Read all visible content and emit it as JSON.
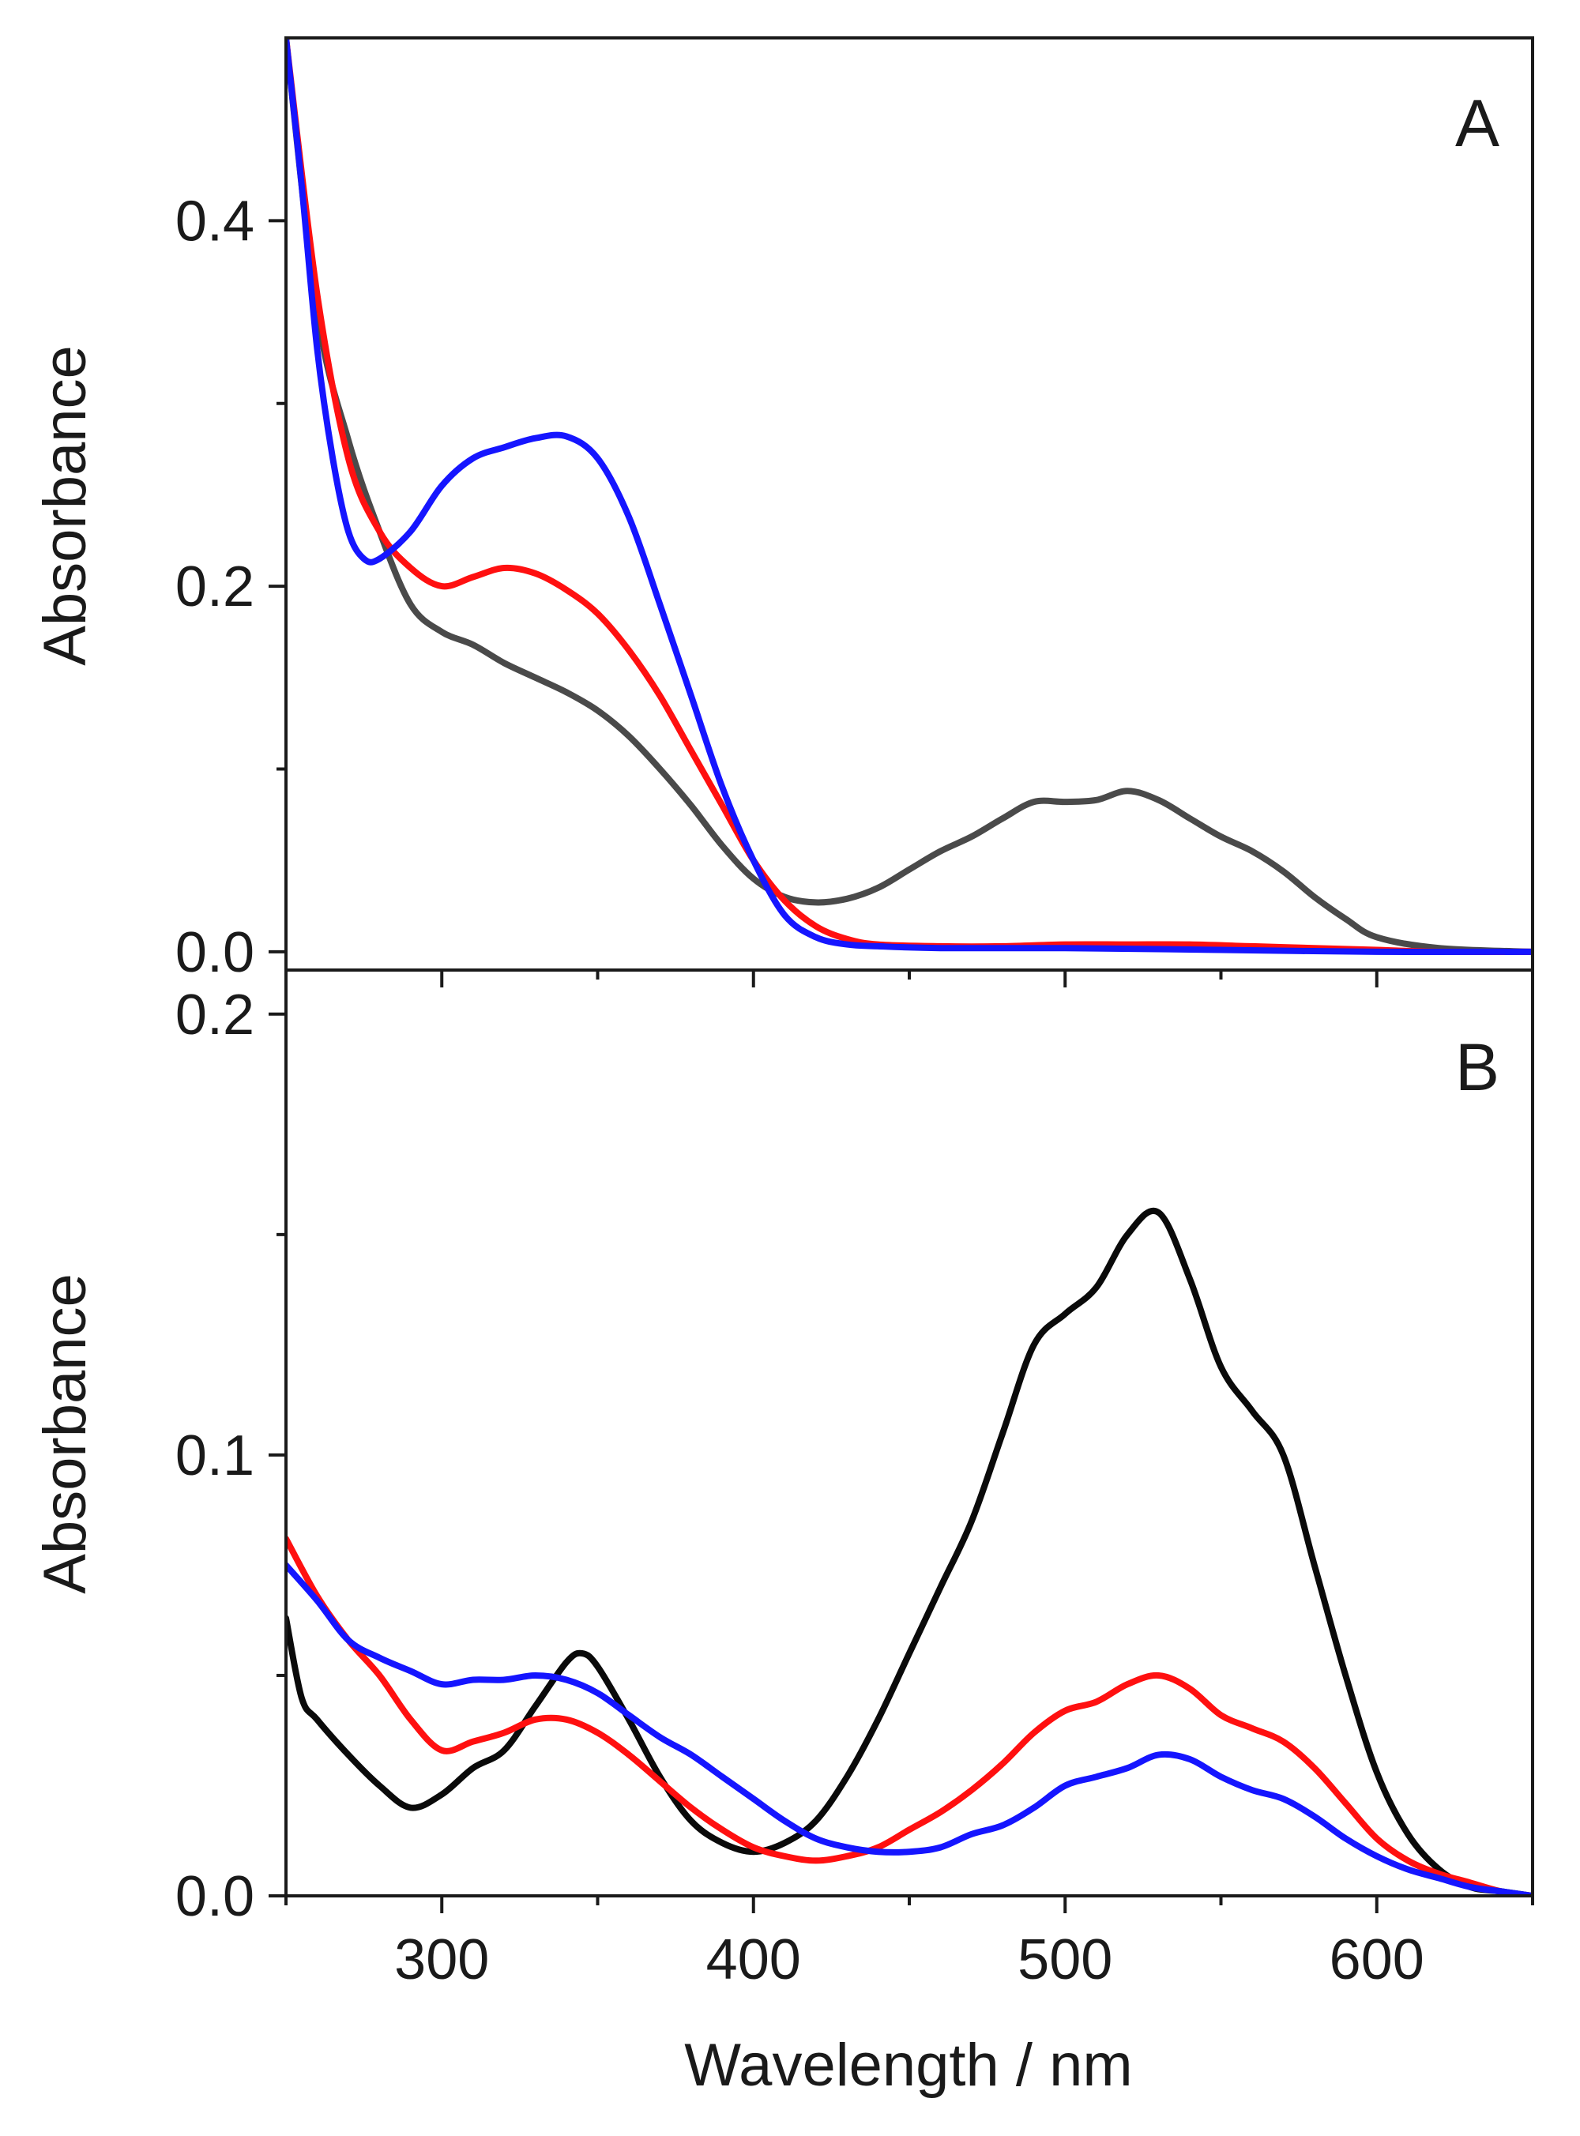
{
  "chart_data": [
    {
      "type": "line",
      "panel": "A",
      "panel_label": "A",
      "ylabel": "Absorbance",
      "xlabel": "",
      "xlim": [
        250,
        650
      ],
      "ylim": [
        -0.01,
        0.5
      ],
      "yticks": [
        0.0,
        0.2,
        0.4
      ],
      "ytick_labels": [
        "0.0",
        "0.2",
        "0.4"
      ],
      "yminor": [
        0.1,
        0.3
      ],
      "series": [
        {
          "name": "dark-gray",
          "color": "#4a4a4a",
          "x": [
            250,
            260,
            270,
            280,
            290,
            300,
            310,
            320,
            330,
            340,
            350,
            360,
            370,
            380,
            390,
            400,
            410,
            420,
            430,
            440,
            450,
            460,
            470,
            480,
            490,
            500,
            510,
            520,
            530,
            540,
            550,
            560,
            570,
            580,
            590,
            600,
            620,
            650
          ],
          "y": [
            0.5,
            0.35,
            0.28,
            0.23,
            0.19,
            0.175,
            0.168,
            0.158,
            0.15,
            0.142,
            0.132,
            0.118,
            0.1,
            0.08,
            0.058,
            0.04,
            0.03,
            0.027,
            0.029,
            0.035,
            0.045,
            0.055,
            0.063,
            0.073,
            0.082,
            0.082,
            0.083,
            0.088,
            0.083,
            0.073,
            0.063,
            0.055,
            0.044,
            0.03,
            0.018,
            0.008,
            0.002,
            0.0
          ]
        },
        {
          "name": "red",
          "color": "#ff1010",
          "x": [
            250,
            260,
            270,
            280,
            290,
            300,
            310,
            320,
            330,
            340,
            350,
            360,
            370,
            380,
            390,
            400,
            410,
            420,
            430,
            440,
            460,
            480,
            500,
            520,
            540,
            560,
            580,
            600,
            620,
            650
          ],
          "y": [
            0.5,
            0.36,
            0.27,
            0.23,
            0.21,
            0.2,
            0.205,
            0.21,
            0.207,
            0.198,
            0.185,
            0.165,
            0.14,
            0.11,
            0.08,
            0.05,
            0.028,
            0.014,
            0.007,
            0.004,
            0.003,
            0.003,
            0.004,
            0.004,
            0.004,
            0.003,
            0.002,
            0.001,
            0.0,
            0.0
          ]
        },
        {
          "name": "blue",
          "color": "#1515ff",
          "x": [
            250,
            255,
            260,
            265,
            270,
            275,
            280,
            290,
            300,
            310,
            320,
            330,
            340,
            350,
            360,
            370,
            380,
            390,
            400,
            410,
            420,
            430,
            440,
            460,
            500,
            550,
            600,
            650
          ],
          "y": [
            0.5,
            0.42,
            0.33,
            0.27,
            0.23,
            0.215,
            0.215,
            0.23,
            0.255,
            0.27,
            0.276,
            0.281,
            0.282,
            0.27,
            0.238,
            0.19,
            0.14,
            0.09,
            0.05,
            0.02,
            0.008,
            0.004,
            0.003,
            0.002,
            0.002,
            0.001,
            0.0,
            0.0
          ]
        }
      ]
    },
    {
      "type": "line",
      "panel": "B",
      "panel_label": "B",
      "ylabel": "Absorbance",
      "xlabel": "Wavelength / nm",
      "xlim": [
        250,
        650
      ],
      "ylim": [
        0,
        0.21
      ],
      "xticks": [
        300,
        400,
        500,
        600
      ],
      "xtick_labels": [
        "300",
        "400",
        "500",
        "600"
      ],
      "xminor": [
        250,
        350,
        450,
        550,
        650
      ],
      "yticks": [
        0.0,
        0.1,
        0.2
      ],
      "ytick_labels": [
        "0.0",
        "0.1",
        "0.2"
      ],
      "yminor": [
        0.05,
        0.15
      ],
      "series": [
        {
          "name": "black",
          "color": "#0a0a0a",
          "x": [
            250,
            255,
            260,
            270,
            280,
            290,
            300,
            310,
            320,
            330,
            340,
            345,
            350,
            360,
            370,
            380,
            390,
            400,
            410,
            420,
            430,
            440,
            450,
            460,
            470,
            480,
            490,
            500,
            510,
            520,
            530,
            540,
            550,
            560,
            570,
            580,
            590,
            600,
            610,
            620,
            630,
            640,
            650
          ],
          "y": [
            0.063,
            0.045,
            0.04,
            0.032,
            0.025,
            0.02,
            0.023,
            0.029,
            0.033,
            0.043,
            0.053,
            0.055,
            0.052,
            0.04,
            0.027,
            0.017,
            0.012,
            0.01,
            0.012,
            0.017,
            0.027,
            0.04,
            0.055,
            0.07,
            0.085,
            0.105,
            0.125,
            0.132,
            0.138,
            0.15,
            0.155,
            0.14,
            0.12,
            0.11,
            0.1,
            0.075,
            0.05,
            0.028,
            0.014,
            0.006,
            0.002,
            0.001,
            0.0
          ]
        },
        {
          "name": "red",
          "color": "#ff1010",
          "x": [
            250,
            260,
            270,
            280,
            290,
            300,
            310,
            320,
            330,
            340,
            350,
            360,
            370,
            380,
            390,
            400,
            410,
            420,
            430,
            440,
            450,
            460,
            470,
            480,
            490,
            500,
            510,
            520,
            530,
            540,
            550,
            560,
            570,
            580,
            590,
            600,
            610,
            620,
            630,
            640,
            650
          ],
          "y": [
            0.081,
            0.068,
            0.058,
            0.05,
            0.04,
            0.033,
            0.035,
            0.037,
            0.04,
            0.04,
            0.037,
            0.032,
            0.026,
            0.02,
            0.015,
            0.011,
            0.009,
            0.008,
            0.009,
            0.011,
            0.015,
            0.019,
            0.024,
            0.03,
            0.037,
            0.042,
            0.044,
            0.048,
            0.05,
            0.047,
            0.041,
            0.038,
            0.035,
            0.029,
            0.021,
            0.013,
            0.008,
            0.005,
            0.003,
            0.001,
            0.0
          ]
        },
        {
          "name": "blue",
          "color": "#1515ff",
          "x": [
            250,
            260,
            270,
            280,
            290,
            300,
            310,
            320,
            330,
            340,
            350,
            360,
            370,
            380,
            390,
            400,
            410,
            420,
            430,
            440,
            450,
            460,
            470,
            480,
            490,
            500,
            510,
            520,
            530,
            540,
            550,
            560,
            570,
            580,
            590,
            600,
            610,
            620,
            630,
            640,
            650
          ],
          "y": [
            0.075,
            0.067,
            0.058,
            0.054,
            0.051,
            0.048,
            0.049,
            0.049,
            0.05,
            0.049,
            0.046,
            0.041,
            0.036,
            0.032,
            0.027,
            0.022,
            0.017,
            0.013,
            0.011,
            0.01,
            0.01,
            0.011,
            0.014,
            0.016,
            0.02,
            0.025,
            0.027,
            0.029,
            0.032,
            0.031,
            0.027,
            0.024,
            0.022,
            0.018,
            0.013,
            0.009,
            0.006,
            0.004,
            0.002,
            0.001,
            0.0
          ]
        }
      ]
    }
  ]
}
